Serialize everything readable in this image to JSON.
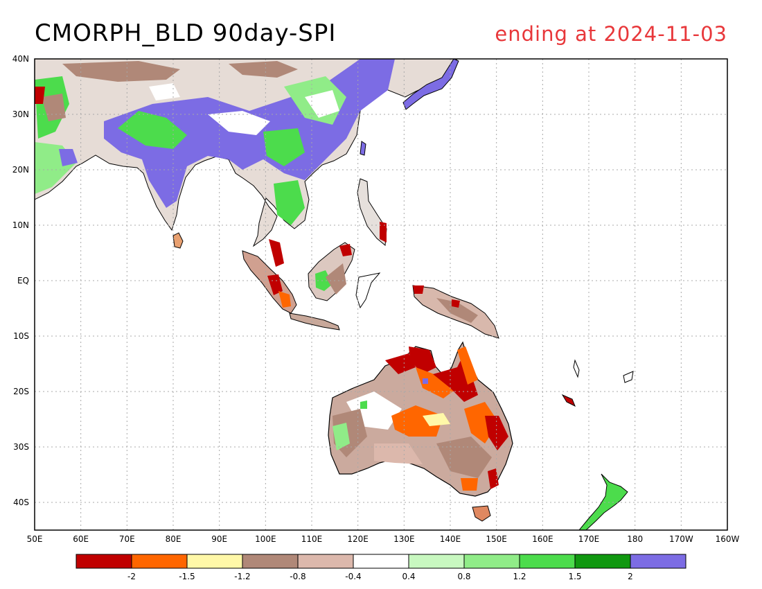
{
  "header": {
    "title": "CMORPH_BLD 90day-SPI",
    "subtitle": "ending at 2024-11-03"
  },
  "map": {
    "lon_range": [
      50,
      200
    ],
    "lat_range": [
      -45,
      40
    ],
    "lon_ticks": [
      "50E",
      "60E",
      "70E",
      "80E",
      "90E",
      "100E",
      "110E",
      "120E",
      "130E",
      "140E",
      "150E",
      "160E",
      "170E",
      "180",
      "170W",
      "160W"
    ],
    "lat_ticks": [
      "40N",
      "30N",
      "20N",
      "10N",
      "EQ",
      "10S",
      "20S",
      "30S",
      "40S"
    ],
    "grid": true
  },
  "legend": {
    "colors": [
      "#c00000",
      "#ff6600",
      "#fff8a8",
      "#b08878",
      "#dcb8ac",
      "#ffffff",
      "#c8f8c0",
      "#90ec88",
      "#4cdc4c",
      "#109810",
      "#7c6ce4"
    ],
    "labels": [
      "-2",
      "-1.5",
      "-1.2",
      "-0.8",
      "-0.4",
      "0.4",
      "0.8",
      "1.2",
      "1.5",
      "2"
    ]
  }
}
